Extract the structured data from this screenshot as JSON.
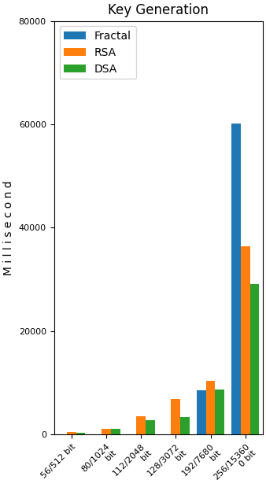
{
  "chart_data": {
    "type": "bar",
    "title": "Key Generation",
    "y_label": "M i l l i s e c o n d",
    "categories": [
      "56/512 bit",
      "80/1024\nbit",
      "112/2048\nbit",
      "128/3072\nbit",
      "192/7680\nbit",
      "256/15360\n0 bit"
    ],
    "series": [
      {
        "name": "Fractal",
        "values": [
          26,
          32,
          108,
          145,
          8563,
          60187
        ]
      },
      {
        "name": "RSA",
        "values": [
          570,
          1150,
          3570,
          6980,
          10480,
          36442
        ]
      },
      {
        "name": "DSA",
        "values": [
          330,
          1120,
          2766,
          3405,
          8780,
          29070
        ]
      }
    ],
    "ylim": [
      0,
      80000
    ],
    "yticks": [
      0,
      20000,
      40000,
      60000,
      80000
    ],
    "grid": false,
    "legend": "upper left"
  }
}
